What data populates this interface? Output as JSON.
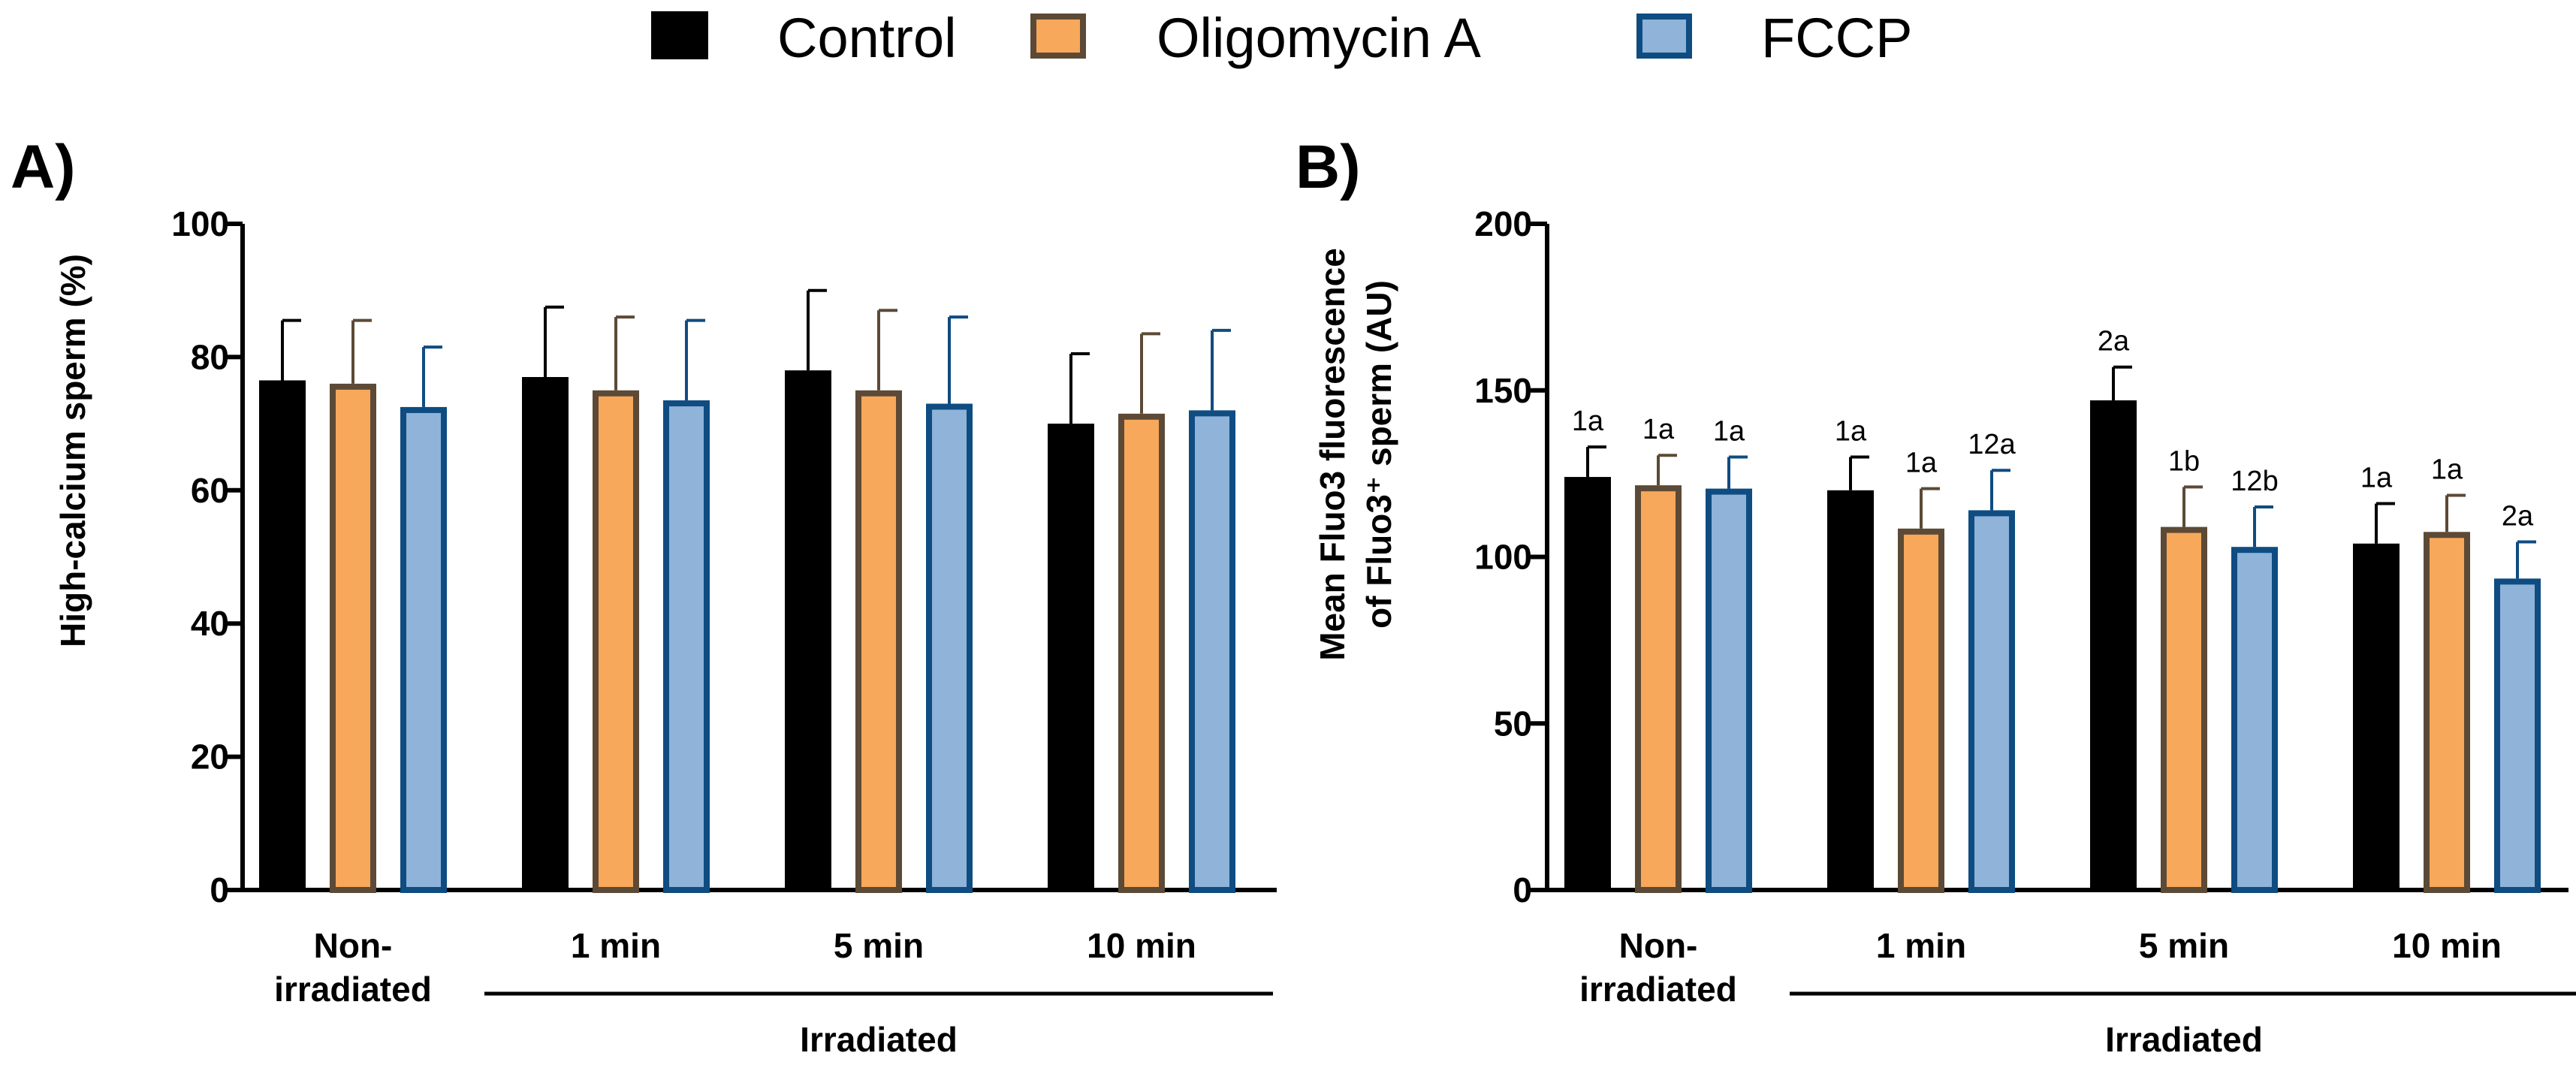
{
  "colors": {
    "Control": {
      "fill": "#000000",
      "stroke": "#000000"
    },
    "Oligomycin A": {
      "fill": "#f7a85b",
      "stroke": "#5c4a36"
    },
    "FCCP": {
      "fill": "#8fb3d9",
      "stroke": "#0f4c81"
    }
  },
  "legend": {
    "entries": [
      "Control",
      "Oligomycin A",
      "FCCP"
    ]
  },
  "group_label": "Irradiated",
  "chart_data": [
    {
      "type": "bar",
      "panel": "A)",
      "ylabel": "High-calcium sperm (%)",
      "xlabel": "",
      "ylim": [
        0,
        100
      ],
      "yticks": [
        0,
        20,
        40,
        60,
        80,
        100
      ],
      "categories": [
        [
          "Non-",
          "irradiated"
        ],
        [
          "1 min"
        ],
        [
          "5 min"
        ],
        [
          "10 min"
        ]
      ],
      "group_label": "Irradiated",
      "series": [
        {
          "name": "Control",
          "values": [
            76.5,
            77,
            78,
            70
          ],
          "errors": [
            9,
            10.5,
            12,
            10.5
          ],
          "labels": []
        },
        {
          "name": "Oligomycin A",
          "values": [
            76,
            75,
            75,
            71.5
          ],
          "errors": [
            9.5,
            11,
            12,
            12
          ],
          "labels": []
        },
        {
          "name": "FCCP",
          "values": [
            72.5,
            73.5,
            73,
            72
          ],
          "errors": [
            9,
            12,
            13,
            12
          ],
          "labels": []
        }
      ]
    },
    {
      "type": "bar",
      "panel": "B)",
      "ylabel": [
        "Mean Fluo3 fluorescence",
        "of Fluo3⁺ sperm (AU)"
      ],
      "xlabel": "",
      "ylim": [
        0,
        200
      ],
      "yticks": [
        0,
        50,
        100,
        150,
        200
      ],
      "categories": [
        [
          "Non-",
          "irradiated"
        ],
        [
          "1 min"
        ],
        [
          "5 min"
        ],
        [
          "10 min"
        ]
      ],
      "group_label": "Irradiated",
      "series": [
        {
          "name": "Control",
          "values": [
            124,
            120,
            147,
            104
          ],
          "errors": [
            9,
            10,
            10,
            12
          ],
          "labels": [
            "1a",
            "1a",
            "2a",
            "1a"
          ]
        },
        {
          "name": "Oligomycin A",
          "values": [
            121.5,
            108.5,
            109,
            107.5
          ],
          "errors": [
            9,
            12,
            12,
            11
          ],
          "labels": [
            "1a",
            "1a",
            "1b",
            "1a"
          ]
        },
        {
          "name": "FCCP",
          "values": [
            120.5,
            114,
            103,
            93.5
          ],
          "errors": [
            9.5,
            12,
            12,
            11
          ],
          "labels": [
            "1a",
            "12a",
            "12b",
            "2a"
          ]
        }
      ]
    }
  ]
}
